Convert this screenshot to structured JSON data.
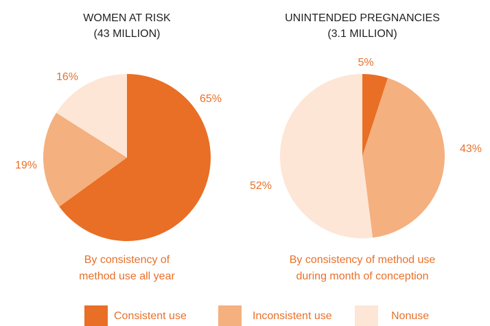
{
  "chart_data": [
    {
      "type": "pie",
      "title": "WOMEN AT RISK",
      "subtitle": "(43 MILLION)",
      "categories": [
        "Consistent use",
        "Inconsistent use",
        "Nonuse"
      ],
      "colors": [
        "#e86f25",
        "#f4b07e",
        "#fde6d6"
      ],
      "values": [
        65,
        19,
        16
      ],
      "value_labels": [
        "65%",
        "19%",
        "16%"
      ],
      "caption": [
        "By consistency of",
        "method use all year"
      ]
    },
    {
      "type": "pie",
      "title": "UNINTENDED PREGNANCIES",
      "subtitle": "(3.1 MILLION)",
      "categories": [
        "Consistent use",
        "Inconsistent use",
        "Nonuse"
      ],
      "colors": [
        "#e86f25",
        "#f4b07e",
        "#fde6d6"
      ],
      "values": [
        5,
        43,
        52
      ],
      "value_labels": [
        "5%",
        "43%",
        "52%"
      ],
      "caption": [
        "By consistency of method use",
        "during month of conception"
      ]
    }
  ]
}
